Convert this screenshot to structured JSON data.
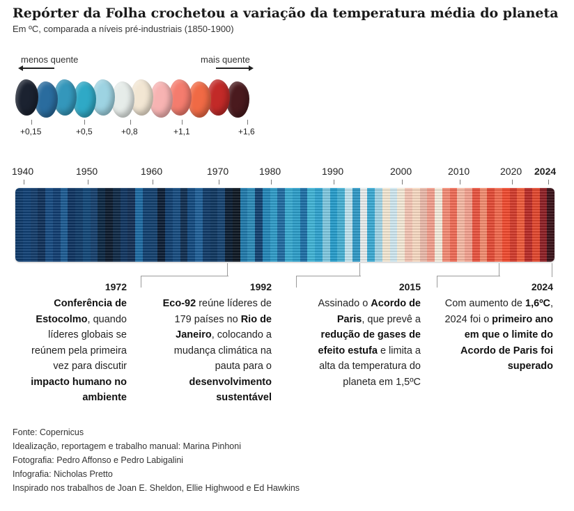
{
  "title": "Repórter da Folha crochetou a variação da temperatura média do planeta",
  "subtitle": "Em ºC, comparada a níveis pré-industriais (1850-1900)",
  "legend": {
    "less_label": "menos quente",
    "more_label": "mais quente",
    "balls": [
      "#1b2230",
      "#2a6c9e",
      "#3497bb",
      "#2fa9c6",
      "#9dd3e2",
      "#e6ece9",
      "#f2e6d3",
      "#f7b3b2",
      "#f47c6e",
      "#f06a45",
      "#c22a28",
      "#4a1a1e"
    ],
    "ticks": [
      "+0,15",
      "+0,5",
      "+0,8",
      "+1,1",
      "+1,6"
    ]
  },
  "timeline": {
    "years": [
      "1940",
      "1950",
      "1960",
      "1970",
      "1980",
      "1990",
      "2000",
      "2010",
      "2020",
      "2024"
    ],
    "stripe_colors": [
      "#0d3a6b",
      "#0f3f74",
      "#123b6a",
      "#0d2f58",
      "#154a80",
      "#0f3c70",
      "#1b5a92",
      "#0c3260",
      "#0e3a68",
      "#114677",
      "#143e6c",
      "#0a2642",
      "#0b1a2c",
      "#0d2845",
      "#0f3460",
      "#112e54",
      "#1c6aa2",
      "#0f3f6f",
      "#123f6d",
      "#0a1c33",
      "#0e3d6e",
      "#154b7f",
      "#0e2c4f",
      "#11487e",
      "#1e5f97",
      "#0f3a68",
      "#0d355f",
      "#14426f",
      "#0a1d32",
      "#0c1622",
      "#1e78aa",
      "#2a8ab8",
      "#11406f",
      "#2186b8",
      "#2e9bc7",
      "#1e6aa0",
      "#38a9d0",
      "#2b9dc8",
      "#1c6ea6",
      "#3fb3d6",
      "#2ea2ce",
      "#7fc7df",
      "#259ccb",
      "#45b0d4",
      "#bfe3ee",
      "#2f99c6",
      "#e9ecec",
      "#3aaad4",
      "#a3d5e6",
      "#f3e7d2",
      "#cfe8f0",
      "#f5ead7",
      "#f4c4b3",
      "#f7d9c2",
      "#eab9a9",
      "#f39d8b",
      "#f5ecdc",
      "#f48a74",
      "#ef6a55",
      "#f6b9a4",
      "#f3a08e",
      "#e9523e",
      "#f28c6f",
      "#e34a34",
      "#f26a4e",
      "#f04a2e",
      "#d23a2a",
      "#ef5a3a",
      "#b92a26",
      "#e2462d",
      "#8e1e24",
      "#3a1218"
    ],
    "milestone_value": "1,6ºC"
  },
  "events": [
    {
      "year": "1972",
      "parts": [
        [
          "Conferência de Estocolmo",
          true
        ],
        [
          ", quando líderes globais se reúnem pela primeira vez para discutir ",
          false
        ],
        [
          "impacto humano no ambiente",
          true
        ]
      ]
    },
    {
      "year": "1992",
      "parts": [
        [
          "Eco-92",
          true
        ],
        [
          " reúne líderes de 179 países no ",
          false
        ],
        [
          "Rio de Janeiro",
          true
        ],
        [
          ", colocando a mudança climática na pauta para o ",
          false
        ],
        [
          "desenvolvimento sustentável",
          true
        ]
      ]
    },
    {
      "year": "2015",
      "parts": [
        [
          "Assinado o ",
          false
        ],
        [
          "Acordo de Paris",
          true
        ],
        [
          ", que prevê a ",
          false
        ],
        [
          "redução de gases de efeito estufa",
          true
        ],
        [
          " e limita a alta da temperatura do planeta em 1,5ºC",
          false
        ]
      ]
    },
    {
      "year": "2024",
      "parts": [
        [
          "Com aumento de ",
          false
        ],
        [
          "1,6ºC",
          true
        ],
        [
          ", 2024 foi o ",
          false
        ],
        [
          "primeiro ano em que o limite do Acordo de Paris foi superado",
          true
        ]
      ]
    }
  ],
  "footer": [
    "Fonte: Copernicus",
    "Idealização, reportagem e trabalho manual: Marina Pinhoni",
    "Fotografia: Pedro Affonso e Pedro Labigalini",
    "Infografia: Nicholas Pretto",
    "Inspirado nos trabalhos de Joan E. Sheldon, Ellie Highwood e Ed Hawkins"
  ]
}
